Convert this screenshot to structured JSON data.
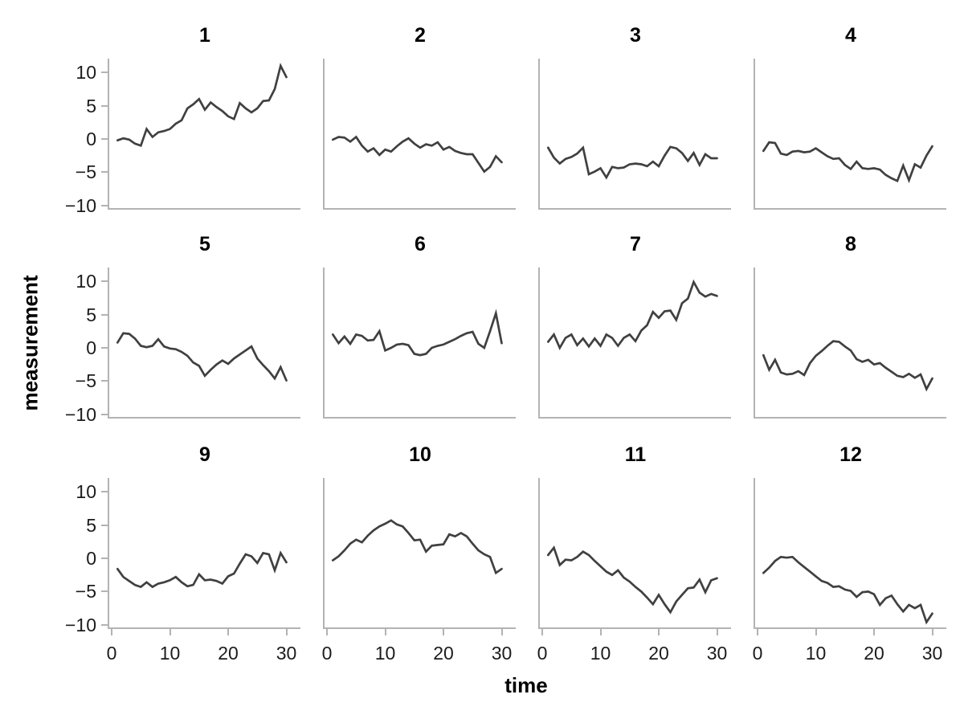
{
  "figure": {
    "y_axis_label": "measurement",
    "x_axis_label": "time"
  },
  "axes": {
    "y_tick_labels": [
      "10",
      "5",
      "0",
      "−5",
      "−10"
    ],
    "y_tick_values": [
      10,
      5,
      0,
      -5,
      -10
    ],
    "x_tick_labels": [
      "0",
      "10",
      "20",
      "30"
    ],
    "x_tick_values": [
      0,
      10,
      20,
      30
    ],
    "y_domain": [
      -10.4,
      12.1
    ],
    "x_domain": [
      -0.4,
      32.4
    ]
  },
  "style": {
    "line_color": "#404040",
    "axis_color": "#b3b3b3",
    "tick_text_color": "#1c1c1c",
    "title_text_color": "#000000",
    "background": "#ffffff"
  },
  "chart_data": {
    "type": "line",
    "layout": "small-multiples 3 rows x 4 cols",
    "title": "",
    "xlabel": "time",
    "ylabel": "measurement",
    "xlim": [
      0,
      30
    ],
    "ylim": [
      -10,
      10
    ],
    "grid": false,
    "legend": "none",
    "x": [
      1,
      2,
      3,
      4,
      5,
      6,
      7,
      8,
      9,
      10,
      11,
      12,
      13,
      14,
      15,
      16,
      17,
      18,
      19,
      20,
      21,
      22,
      23,
      24,
      25,
      26,
      27,
      28,
      29,
      30
    ],
    "panels": [
      {
        "title": "1",
        "values": [
          -0.2,
          0.1,
          -0.1,
          -0.7,
          -1.0,
          1.5,
          0.3,
          1.0,
          1.2,
          1.5,
          2.3,
          2.8,
          4.6,
          5.2,
          6.0,
          4.4,
          5.5,
          4.8,
          4.2,
          3.4,
          3.0,
          5.4,
          4.6,
          4.0,
          4.6,
          5.7,
          5.8,
          7.5,
          11.0,
          9.3
        ]
      },
      {
        "title": "2",
        "values": [
          -0.1,
          0.3,
          0.2,
          -0.4,
          0.3,
          -1.0,
          -1.9,
          -1.4,
          -2.4,
          -1.6,
          -1.9,
          -1.1,
          -0.4,
          0.1,
          -0.7,
          -1.3,
          -0.8,
          -1.0,
          -0.5,
          -1.6,
          -1.2,
          -1.8,
          -2.1,
          -2.3,
          -2.3,
          -3.6,
          -4.9,
          -4.2,
          -2.6,
          -3.5
        ]
      },
      {
        "title": "3",
        "values": [
          -1.3,
          -2.8,
          -3.7,
          -3.0,
          -2.7,
          -2.2,
          -1.3,
          -5.3,
          -4.9,
          -4.4,
          -5.8,
          -4.2,
          -4.4,
          -4.3,
          -3.8,
          -3.7,
          -3.8,
          -4.1,
          -3.4,
          -4.1,
          -2.5,
          -1.2,
          -1.4,
          -2.1,
          -3.3,
          -2.1,
          -3.9,
          -2.3,
          -2.9,
          -2.9
        ]
      },
      {
        "title": "4",
        "values": [
          -1.8,
          -0.5,
          -0.6,
          -2.2,
          -2.4,
          -1.9,
          -1.8,
          -2.0,
          -1.9,
          -1.4,
          -2.0,
          -2.6,
          -3.0,
          -2.9,
          -3.9,
          -4.5,
          -3.4,
          -4.4,
          -4.5,
          -4.4,
          -4.6,
          -5.4,
          -5.9,
          -6.3,
          -4.0,
          -6.2,
          -3.8,
          -4.3,
          -2.5,
          -1.1
        ]
      },
      {
        "title": "5",
        "values": [
          0.8,
          2.2,
          2.1,
          1.4,
          0.3,
          0.1,
          0.3,
          1.3,
          0.2,
          -0.1,
          -0.2,
          -0.6,
          -1.2,
          -2.2,
          -2.7,
          -4.2,
          -3.3,
          -2.5,
          -1.9,
          -2.4,
          -1.6,
          -1.0,
          -0.4,
          0.2,
          -1.6,
          -2.6,
          -3.5,
          -4.6,
          -2.9,
          -4.9
        ]
      },
      {
        "title": "6",
        "values": [
          2.0,
          0.7,
          1.7,
          0.6,
          2.0,
          1.8,
          1.1,
          1.2,
          2.5,
          -0.4,
          0.0,
          0.5,
          0.6,
          0.4,
          -0.9,
          -1.1,
          -0.9,
          0.0,
          0.3,
          0.5,
          0.9,
          1.3,
          1.8,
          2.2,
          2.4,
          0.6,
          0.0,
          2.5,
          5.2,
          0.7
        ]
      },
      {
        "title": "7",
        "values": [
          0.9,
          2.0,
          0.0,
          1.5,
          2.0,
          0.4,
          1.4,
          0.2,
          1.4,
          0.3,
          2.0,
          1.5,
          0.3,
          1.5,
          2.0,
          1.0,
          2.6,
          3.4,
          5.4,
          4.5,
          5.5,
          5.6,
          4.2,
          6.7,
          7.4,
          9.9,
          8.3,
          7.7,
          8.1,
          7.8
        ]
      },
      {
        "title": "8",
        "values": [
          -1.1,
          -3.3,
          -1.8,
          -3.7,
          -4.0,
          -3.9,
          -3.5,
          -4.1,
          -2.3,
          -1.2,
          -0.5,
          0.3,
          1.0,
          0.9,
          0.2,
          -0.4,
          -1.7,
          -2.1,
          -1.8,
          -2.5,
          -2.3,
          -3.0,
          -3.6,
          -4.2,
          -4.4,
          -3.9,
          -4.5,
          -4.0,
          -6.2,
          -4.6
        ]
      },
      {
        "title": "9",
        "values": [
          -1.6,
          -2.8,
          -3.4,
          -4.0,
          -4.3,
          -3.6,
          -4.3,
          -3.8,
          -3.6,
          -3.3,
          -2.8,
          -3.6,
          -4.2,
          -4.0,
          -2.4,
          -3.3,
          -3.2,
          -3.4,
          -3.8,
          -2.7,
          -2.3,
          -0.8,
          0.6,
          0.3,
          -0.7,
          0.8,
          0.6,
          -1.8,
          0.8,
          -0.6
        ]
      },
      {
        "title": "10",
        "values": [
          -0.3,
          0.3,
          1.2,
          2.2,
          2.8,
          2.4,
          3.4,
          4.2,
          4.8,
          5.2,
          5.7,
          5.1,
          4.8,
          3.8,
          2.7,
          2.8,
          1.0,
          1.9,
          2.0,
          2.1,
          3.6,
          3.3,
          3.8,
          3.3,
          2.2,
          1.2,
          0.6,
          0.2,
          -2.2,
          -1.6
        ]
      },
      {
        "title": "11",
        "values": [
          0.5,
          1.6,
          -1.0,
          -0.2,
          -0.3,
          0.2,
          1.0,
          0.5,
          -0.4,
          -1.2,
          -2.0,
          -2.5,
          -1.8,
          -2.9,
          -3.5,
          -4.3,
          -5.0,
          -5.9,
          -6.9,
          -5.5,
          -6.9,
          -8.1,
          -6.5,
          -5.5,
          -4.5,
          -4.4,
          -3.2,
          -5.1,
          -3.3,
          -3.0
        ]
      },
      {
        "title": "12",
        "values": [
          -2.2,
          -1.4,
          -0.4,
          0.2,
          0.1,
          0.2,
          -0.6,
          -1.3,
          -2.0,
          -2.7,
          -3.4,
          -3.7,
          -4.3,
          -4.2,
          -4.7,
          -4.9,
          -5.8,
          -5.1,
          -5.0,
          -5.4,
          -7.0,
          -6.0,
          -5.6,
          -6.9,
          -8.0,
          -7.0,
          -7.5,
          -7.0,
          -9.6,
          -8.3
        ]
      }
    ]
  }
}
